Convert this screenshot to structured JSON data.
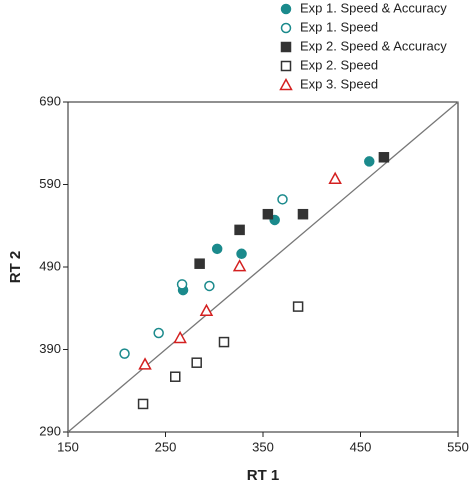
{
  "chart_data": {
    "type": "scatter",
    "x_label": "RT 1",
    "y_label": "RT 2",
    "xlim": [
      150,
      550
    ],
    "ylim": [
      290,
      690
    ],
    "xticks": [
      150,
      250,
      350,
      450,
      550
    ],
    "yticks": [
      290,
      390,
      490,
      590,
      690
    ],
    "reference_line": "diagonal",
    "series": [
      {
        "name": "Exp 1. Speed & Accuracy",
        "color": "#1b8a8c",
        "marker": "circle",
        "filled": true,
        "x": [
          268,
          303,
          328,
          362,
          459
        ],
        "values": [
          462,
          512,
          506,
          547,
          618
        ]
      },
      {
        "name": "Exp 1. Speed",
        "color": "#1b8a8c",
        "marker": "circle",
        "filled": false,
        "x": [
          208,
          243,
          267,
          295,
          370
        ],
        "values": [
          385,
          410,
          469,
          467,
          572
        ]
      },
      {
        "name": "Exp 2. Speed & Accuracy",
        "color": "#333333",
        "marker": "square",
        "filled": true,
        "x": [
          285,
          326,
          355,
          391,
          474
        ],
        "values": [
          494,
          535,
          554,
          554,
          623
        ]
      },
      {
        "name": "Exp 2. Speed",
        "color": "#333333",
        "marker": "square",
        "filled": false,
        "x": [
          227,
          260,
          282,
          310,
          386
        ],
        "values": [
          324,
          357,
          374,
          399,
          442
        ]
      },
      {
        "name": "Exp 3. Speed",
        "color": "#d42020",
        "marker": "triangle",
        "filled": false,
        "x": [
          229,
          265,
          292,
          326,
          424
        ],
        "values": [
          372,
          404,
          437,
          491,
          597
        ]
      }
    ]
  }
}
